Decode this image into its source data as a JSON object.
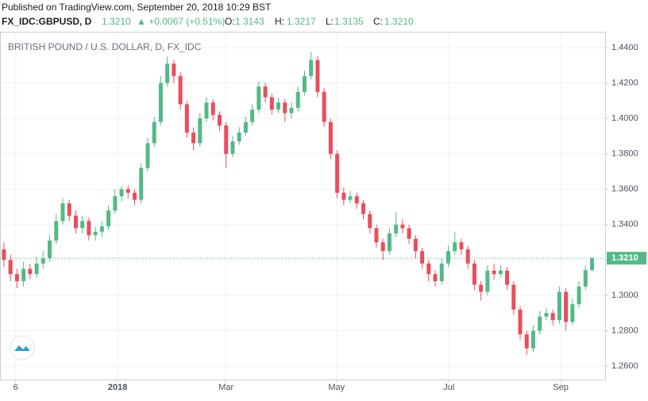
{
  "header": {
    "published": "Published on TradingView.com, September 20, 2018 10:29 BST",
    "symbol": "FX_IDC:GBPUSD, D",
    "last": "1.3210",
    "change": "▲ +0.0067 (+0.51%)",
    "o_label": "O:",
    "o": "1.3143",
    "h_label": "H:",
    "h": "1.3217",
    "l_label": "L:",
    "l": "1.3135",
    "c_label": "C:",
    "c": "1.3210"
  },
  "chart_data": {
    "type": "candlestick",
    "title": "BRITISH POUND / U.S. DOLLAR, D, FX_IDC",
    "up_color": "#53b987",
    "down_color": "#eb4d5c",
    "grid": true,
    "open": [
      1.326,
      1.32,
      1.312,
      1.308,
      1.315,
      1.312,
      1.318,
      1.321,
      1.331,
      1.342,
      1.352,
      1.345,
      1.338,
      1.342,
      1.334,
      1.336,
      1.339,
      1.348,
      1.356,
      1.36,
      1.358,
      1.354,
      1.372,
      1.386,
      1.398,
      1.42,
      1.431,
      1.424,
      1.408,
      1.392,
      1.386,
      1.4,
      1.409,
      1.402,
      1.396,
      1.38,
      1.387,
      1.392,
      1.398,
      1.405,
      1.418,
      1.412,
      1.405,
      1.409,
      1.403,
      1.406,
      1.415,
      1.424,
      1.433,
      1.415,
      1.398,
      1.38,
      1.358,
      1.354,
      1.356,
      1.352,
      1.346,
      1.338,
      1.33,
      1.325,
      1.335,
      1.34,
      1.338,
      1.332,
      1.325,
      1.318,
      1.312,
      1.308,
      1.318,
      1.325,
      1.33,
      1.326,
      1.318,
      1.306,
      1.302,
      1.314,
      1.312,
      1.314,
      1.306,
      1.292,
      1.278,
      1.27,
      1.28,
      1.288,
      1.29,
      1.286,
      1.302,
      1.285,
      1.295,
      1.305,
      1.3143
    ],
    "high": [
      1.33,
      1.323,
      1.315,
      1.319,
      1.318,
      1.322,
      1.325,
      1.334,
      1.346,
      1.355,
      1.354,
      1.348,
      1.345,
      1.344,
      1.339,
      1.342,
      1.351,
      1.36,
      1.362,
      1.362,
      1.36,
      1.375,
      1.389,
      1.401,
      1.424,
      1.435,
      1.433,
      1.426,
      1.41,
      1.395,
      1.403,
      1.412,
      1.411,
      1.404,
      1.398,
      1.39,
      1.395,
      1.401,
      1.408,
      1.421,
      1.42,
      1.414,
      1.412,
      1.411,
      1.409,
      1.418,
      1.427,
      1.4376,
      1.435,
      1.417,
      1.4,
      1.382,
      1.361,
      1.359,
      1.358,
      1.354,
      1.348,
      1.34,
      1.332,
      1.338,
      1.347,
      1.343,
      1.34,
      1.334,
      1.327,
      1.32,
      1.314,
      1.321,
      1.328,
      1.336,
      1.332,
      1.328,
      1.32,
      1.308,
      1.317,
      1.318,
      1.317,
      1.316,
      1.308,
      1.294,
      1.28,
      1.283,
      1.291,
      1.293,
      1.292,
      1.305,
      1.304,
      1.298,
      1.308,
      1.317,
      1.3217
    ],
    "low": [
      1.316,
      1.308,
      1.304,
      1.305,
      1.309,
      1.31,
      1.315,
      1.319,
      1.329,
      1.34,
      1.342,
      1.335,
      1.335,
      1.331,
      1.331,
      1.333,
      1.337,
      1.346,
      1.353,
      1.355,
      1.351,
      1.352,
      1.37,
      1.384,
      1.396,
      1.418,
      1.42,
      1.405,
      1.389,
      1.382,
      1.384,
      1.398,
      1.399,
      1.393,
      1.372,
      1.378,
      1.385,
      1.39,
      1.396,
      1.403,
      1.409,
      1.402,
      1.403,
      1.398,
      1.4,
      1.404,
      1.413,
      1.422,
      1.412,
      1.395,
      1.377,
      1.355,
      1.351,
      1.352,
      1.349,
      1.343,
      1.335,
      1.327,
      1.32,
      1.323,
      1.333,
      1.335,
      1.329,
      1.321,
      1.315,
      1.308,
      1.305,
      1.306,
      1.316,
      1.323,
      1.323,
      1.315,
      1.303,
      1.297,
      1.3,
      1.309,
      1.31,
      1.303,
      1.289,
      1.275,
      1.2663,
      1.268,
      1.278,
      1.286,
      1.283,
      1.284,
      1.28,
      1.283,
      1.293,
      1.303,
      1.3135
    ],
    "close": [
      1.32,
      1.312,
      1.308,
      1.315,
      1.312,
      1.318,
      1.321,
      1.331,
      1.342,
      1.352,
      1.345,
      1.338,
      1.342,
      1.334,
      1.336,
      1.339,
      1.348,
      1.356,
      1.36,
      1.358,
      1.354,
      1.372,
      1.386,
      1.398,
      1.42,
      1.431,
      1.424,
      1.408,
      1.392,
      1.386,
      1.4,
      1.409,
      1.402,
      1.396,
      1.38,
      1.387,
      1.392,
      1.398,
      1.405,
      1.418,
      1.412,
      1.405,
      1.409,
      1.403,
      1.406,
      1.415,
      1.424,
      1.433,
      1.415,
      1.398,
      1.38,
      1.358,
      1.354,
      1.356,
      1.352,
      1.346,
      1.338,
      1.33,
      1.325,
      1.335,
      1.34,
      1.338,
      1.332,
      1.325,
      1.318,
      1.312,
      1.308,
      1.318,
      1.325,
      1.33,
      1.326,
      1.318,
      1.306,
      1.302,
      1.314,
      1.312,
      1.314,
      1.306,
      1.292,
      1.278,
      1.27,
      1.28,
      1.288,
      1.29,
      1.286,
      1.302,
      1.285,
      1.295,
      1.305,
      1.3143,
      1.321
    ],
    "last_label": "1.3210",
    "xlim": [
      -0.6,
      92
    ],
    "xticks": [
      {
        "value": 1.8,
        "label": "6"
      },
      {
        "value": 17.4,
        "label": "2018"
      },
      {
        "value": 34,
        "label": "Mar"
      },
      {
        "value": 50.9,
        "label": "May"
      },
      {
        "value": 68.1,
        "label": "Jul"
      },
      {
        "value": 85.2,
        "label": "Sep"
      }
    ],
    "ylim": [
      1.2524,
      1.449
    ],
    "yticks": [
      {
        "value": 1.26,
        "label": "1.2600"
      },
      {
        "value": 1.28,
        "label": "1.2800"
      },
      {
        "value": 1.3,
        "label": "1.3000"
      },
      {
        "value": 1.32,
        "label": "1.3200"
      },
      {
        "value": 1.34,
        "label": "1.3400"
      },
      {
        "value": 1.36,
        "label": "1.3600"
      },
      {
        "value": 1.38,
        "label": "1.3800"
      },
      {
        "value": 1.4,
        "label": "1.4000"
      },
      {
        "value": 1.42,
        "label": "1.4200"
      },
      {
        "value": 1.44,
        "label": "1.4400"
      }
    ]
  }
}
